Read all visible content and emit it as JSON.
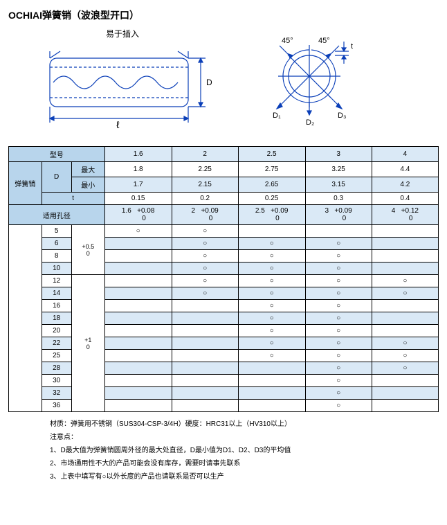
{
  "title": "OCHIAI弹簧销（波浪型开口）",
  "diagram": {
    "side": {
      "topLabel": "易于插入",
      "rightLabel": "D",
      "bottomLabel": "ℓ",
      "stroke": "#0b3fb8"
    },
    "circle": {
      "angleLabelL": "45°",
      "angleLabelR": "45°",
      "tLabel": "t",
      "d1": "D₁",
      "d2": "D₂",
      "d3": "D₃",
      "stroke": "#0b3fb8"
    }
  },
  "headers": {
    "model": "型号",
    "spring": "弹簧销",
    "D": "D",
    "max": "最大",
    "min": "最小",
    "t": "t",
    "hole": "适用孔径"
  },
  "models": [
    "1.6",
    "2",
    "2.5",
    "3",
    "4"
  ],
  "maxRow": [
    "1.8",
    "2.25",
    "2.75",
    "3.25",
    "4.4"
  ],
  "minRow": [
    "1.7",
    "2.15",
    "2.65",
    "3.15",
    "4.2"
  ],
  "tRow": [
    "0.15",
    "0.2",
    "0.25",
    "0.3",
    "0.4"
  ],
  "holeRow": [
    {
      "v": "1.6",
      "tol": "+0.08\n0"
    },
    {
      "v": "2",
      "tol": "+0.09\n0"
    },
    {
      "v": "2.5",
      "tol": "+0.09\n0"
    },
    {
      "v": "3",
      "tol": "+0.09\n0"
    },
    {
      "v": "4",
      "tol": "+0.12\n0"
    }
  ],
  "lenGroups": [
    {
      "tol": "+0.5\n0",
      "rows": [
        {
          "l": "5",
          "m": [
            1,
            1,
            0,
            0,
            0
          ]
        },
        {
          "l": "6",
          "m": [
            0,
            1,
            1,
            1,
            0
          ]
        },
        {
          "l": "8",
          "m": [
            0,
            1,
            1,
            1,
            0
          ]
        },
        {
          "l": "10",
          "m": [
            0,
            1,
            1,
            1,
            0
          ]
        }
      ]
    },
    {
      "tol": "+1\n0",
      "rows": [
        {
          "l": "12",
          "m": [
            0,
            1,
            1,
            1,
            1
          ]
        },
        {
          "l": "14",
          "m": [
            0,
            1,
            1,
            1,
            1
          ]
        },
        {
          "l": "16",
          "m": [
            0,
            0,
            1,
            1,
            0
          ]
        },
        {
          "l": "18",
          "m": [
            0,
            0,
            1,
            1,
            0
          ]
        },
        {
          "l": "20",
          "m": [
            0,
            0,
            1,
            1,
            0
          ]
        },
        {
          "l": "22",
          "m": [
            0,
            0,
            1,
            1,
            1
          ]
        },
        {
          "l": "25",
          "m": [
            0,
            0,
            1,
            1,
            1
          ]
        },
        {
          "l": "28",
          "m": [
            0,
            0,
            0,
            1,
            1
          ]
        },
        {
          "l": "30",
          "m": [
            0,
            0,
            0,
            1,
            0
          ]
        },
        {
          "l": "32",
          "m": [
            0,
            0,
            0,
            1,
            0
          ]
        },
        {
          "l": "36",
          "m": [
            0,
            0,
            0,
            1,
            0
          ]
        }
      ]
    }
  ],
  "notes": {
    "material": "材质：弹簧用不锈钢（SUS304-CSP-3/4H）硬度：HRC31以上（HV310以上）",
    "heading": "注意点：",
    "n1": "1、D最大值为弹簧销圆周外径的最大处直径，D最小值为D1、D2、D3的平均值",
    "n2": "2、市场通用性不大的产品可能会没有库存，需要时请事先联系",
    "n3": "3、上表中填写有○以外长度的产品也请联系是否可以生产"
  },
  "markChar": "○"
}
